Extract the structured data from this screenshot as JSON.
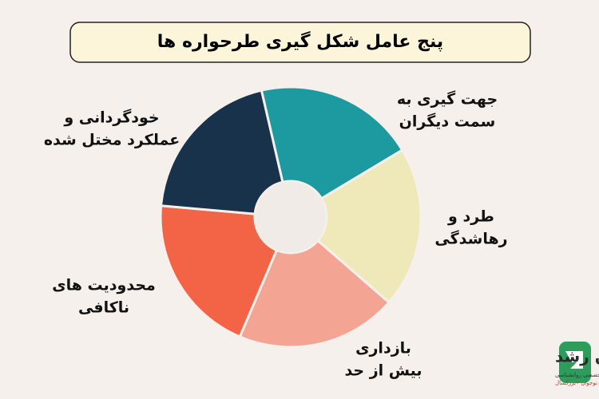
{
  "chart_data": {
    "type": "pie",
    "title": "پنج عامل شکل گیری طرحواره ها",
    "categories": [
      [
        "جهت گیری به",
        "سمت دیگران"
      ],
      [
        "طرد و",
        "رهاشدگی"
      ],
      [
        "بازداری",
        "بیش از حد"
      ],
      [
        "محدودیت های",
        "ناکافی"
      ],
      [
        "خودگردانی و",
        "عملکرد مختل شده"
      ]
    ],
    "values": [
      20,
      20,
      20,
      20,
      20
    ],
    "colors": [
      "#1d9aa0",
      "#efe8b8",
      "#f3a493",
      "#f26445",
      "#17324a"
    ]
  },
  "logo": {
    "name": "روان رشد",
    "lines": [
      "کلینیک جامع تخصصی روانشناسی",
      "•کودک و نوجوان •بزرگسال"
    ]
  }
}
